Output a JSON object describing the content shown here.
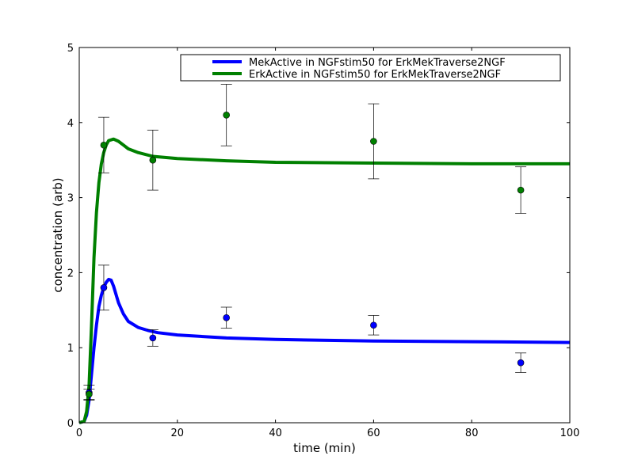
{
  "chart_data": {
    "type": "line",
    "title": "",
    "xlabel": "time (min)",
    "ylabel": "concentration (arb)",
    "xlim": [
      0,
      100
    ],
    "ylim": [
      0,
      5
    ],
    "xticks": [
      0,
      20,
      40,
      60,
      80,
      100
    ],
    "yticks": [
      0,
      1,
      2,
      3,
      4,
      5
    ],
    "grid": false,
    "legend_placement": "top-right",
    "series": [
      {
        "name": "MekActive in NGFstim50 for ErkMekTraverse2NGF",
        "color": "#0000ff",
        "curve": {
          "x": [
            0,
            1,
            1.5,
            2,
            2.5,
            3,
            3.5,
            4,
            4.5,
            5,
            5.5,
            6,
            6.5,
            7,
            8,
            9,
            10,
            12,
            14,
            16,
            20,
            30,
            40,
            60,
            80,
            100
          ],
          "y": [
            0,
            0.02,
            0.1,
            0.3,
            0.65,
            1.0,
            1.3,
            1.55,
            1.7,
            1.8,
            1.87,
            1.91,
            1.9,
            1.82,
            1.6,
            1.45,
            1.35,
            1.27,
            1.23,
            1.2,
            1.17,
            1.13,
            1.11,
            1.09,
            1.08,
            1.07
          ]
        },
        "points": {
          "x": [
            2,
            5,
            15,
            30,
            60,
            90
          ],
          "y": [
            0.4,
            1.8,
            1.13,
            1.4,
            1.3,
            0.8
          ],
          "err": [
            0.1,
            0.3,
            0.11,
            0.14,
            0.13,
            0.13
          ]
        }
      },
      {
        "name": "ErkActive in NGFstim50 for ErkMekTraverse2NGF",
        "color": "#008000",
        "curve": {
          "x": [
            0,
            1,
            1.5,
            2,
            2.5,
            3,
            3.5,
            4,
            4.5,
            5,
            5.5,
            6,
            7,
            8,
            9,
            10,
            12,
            15,
            20,
            30,
            40,
            60,
            80,
            100
          ],
          "y": [
            0,
            0.02,
            0.15,
            0.5,
            1.3,
            2.2,
            2.8,
            3.2,
            3.45,
            3.6,
            3.7,
            3.76,
            3.78,
            3.75,
            3.7,
            3.65,
            3.6,
            3.55,
            3.52,
            3.49,
            3.47,
            3.46,
            3.45,
            3.45
          ]
        },
        "points": {
          "x": [
            2,
            5,
            15,
            30,
            60,
            90
          ],
          "y": [
            0.38,
            3.7,
            3.5,
            4.1,
            3.75,
            3.1
          ],
          "err": [
            0.07,
            0.37,
            0.4,
            0.41,
            0.5,
            0.31
          ]
        }
      }
    ]
  }
}
